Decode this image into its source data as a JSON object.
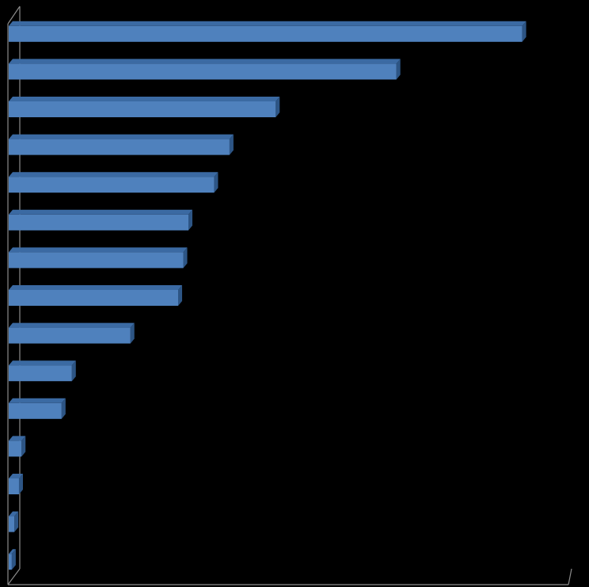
{
  "chart_data": {
    "type": "bar",
    "orientation": "horizontal",
    "categories": [
      null,
      null,
      null,
      null,
      null,
      null,
      null,
      null,
      null,
      null,
      null,
      null,
      null,
      null,
      null
    ],
    "values": [
      100,
      75.5,
      52,
      43,
      40,
      35,
      34,
      33,
      23.7,
      12.3,
      10.3,
      2.5,
      2,
      1.1,
      0.6
    ],
    "color": "#4f81bd",
    "xlim": [
      0,
      109
    ]
  }
}
